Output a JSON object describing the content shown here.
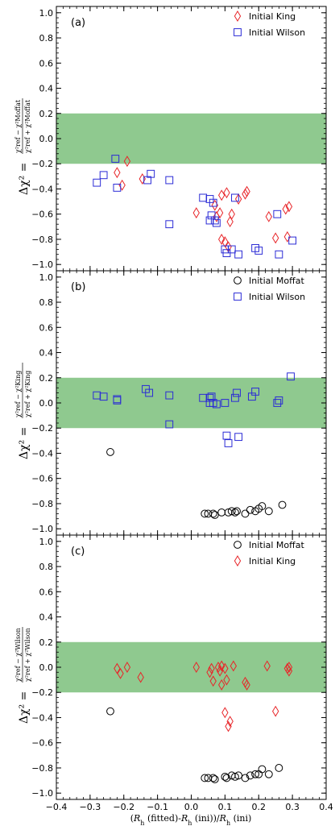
{
  "colors": {
    "band": "#8fc98f",
    "king": "#e8262a",
    "wilson": "#2b2bd6",
    "moffat": "#000000"
  },
  "xaxis": {
    "label": "(R_h (fitted)-R_h (ini))/R_h (ini)",
    "label_parts": [
      "(",
      "R",
      "h",
      " (fitted)-",
      "R",
      "h",
      " (ini))/",
      "R",
      "h",
      " (ini)"
    ],
    "ticks": [
      "−0.4",
      "−0.3",
      "−0.2",
      "−0.1",
      "0.0",
      "0.1",
      "0.2",
      "0.3",
      "0.4"
    ]
  },
  "yaxis_ticks": [
    "1.0",
    "0.8",
    "0.6",
    "0.4",
    "0.2",
    "0.0",
    "−0.2",
    "−0.4",
    "−0.6",
    "−0.8",
    "−1.0"
  ],
  "chart_data": [
    {
      "type": "scatter",
      "panel": "(a)",
      "ylabel": {
        "prefix": "Δχ² =",
        "numerator": "χ²ref − χ²Moffat",
        "denominator": "χ²ref + χ²Moffat",
        "model": "Moffat"
      },
      "xlim": [
        -0.4,
        0.4
      ],
      "ylim": [
        -1.05,
        1.05
      ],
      "band": [
        -0.2,
        0.2
      ],
      "legend_position": "top-right",
      "series": [
        {
          "name": "Initial King",
          "marker": "diamond",
          "color": "#e8262a",
          "points": [
            [
              -0.22,
              -0.27
            ],
            [
              -0.205,
              -0.37
            ],
            [
              -0.19,
              -0.18
            ],
            [
              -0.145,
              -0.32
            ],
            [
              0.015,
              -0.59
            ],
            [
              0.07,
              -0.53
            ],
            [
              0.075,
              -0.62
            ],
            [
              0.085,
              -0.59
            ],
            [
              0.09,
              -0.45
            ],
            [
              0.09,
              -0.8
            ],
            [
              0.1,
              -0.82
            ],
            [
              0.105,
              -0.43
            ],
            [
              0.11,
              -0.86
            ],
            [
              0.115,
              -0.66
            ],
            [
              0.12,
              -0.6
            ],
            [
              0.14,
              -0.48
            ],
            [
              0.16,
              -0.44
            ],
            [
              0.165,
              -0.42
            ],
            [
              0.23,
              -0.62
            ],
            [
              0.25,
              -0.79
            ],
            [
              0.28,
              -0.56
            ],
            [
              0.29,
              -0.54
            ],
            [
              0.285,
              -0.78
            ]
          ]
        },
        {
          "name": "Initial Wilson",
          "marker": "square",
          "color": "#2b2bd6",
          "points": [
            [
              -0.28,
              -0.35
            ],
            [
              -0.26,
              -0.29
            ],
            [
              -0.225,
              -0.16
            ],
            [
              -0.22,
              -0.39
            ],
            [
              -0.13,
              -0.33
            ],
            [
              -0.12,
              -0.28
            ],
            [
              -0.065,
              -0.33
            ],
            [
              -0.065,
              -0.68
            ],
            [
              0.035,
              -0.47
            ],
            [
              0.055,
              -0.48
            ],
            [
              0.055,
              -0.65
            ],
            [
              0.06,
              -0.61
            ],
            [
              0.065,
              -0.51
            ],
            [
              0.07,
              -0.65
            ],
            [
              0.075,
              -0.67
            ],
            [
              0.1,
              -0.88
            ],
            [
              0.105,
              -0.91
            ],
            [
              0.12,
              -0.88
            ],
            [
              0.13,
              -0.47
            ],
            [
              0.14,
              -0.92
            ],
            [
              0.19,
              -0.87
            ],
            [
              0.2,
              -0.89
            ],
            [
              0.255,
              -0.6
            ],
            [
              0.26,
              -0.92
            ],
            [
              0.3,
              -0.81
            ]
          ]
        }
      ]
    },
    {
      "type": "scatter",
      "panel": "(b)",
      "ylabel": {
        "prefix": "Δχ² =",
        "numerator": "χ²ref − χ²King",
        "denominator": "χ²ref + χ²King",
        "model": "King"
      },
      "xlim": [
        -0.4,
        0.4
      ],
      "ylim": [
        -1.05,
        1.05
      ],
      "band": [
        -0.2,
        0.2
      ],
      "legend_position": "top-right",
      "series": [
        {
          "name": "Initial Moffat",
          "marker": "circle",
          "color": "#000000",
          "points": [
            [
              -0.24,
              -0.39
            ],
            [
              0.04,
              -0.88
            ],
            [
              0.05,
              -0.88
            ],
            [
              0.065,
              -0.88
            ],
            [
              0.07,
              -0.89
            ],
            [
              0.09,
              -0.87
            ],
            [
              0.11,
              -0.87
            ],
            [
              0.12,
              -0.86
            ],
            [
              0.13,
              -0.87
            ],
            [
              0.135,
              -0.86
            ],
            [
              0.16,
              -0.88
            ],
            [
              0.175,
              -0.85
            ],
            [
              0.19,
              -0.86
            ],
            [
              0.2,
              -0.84
            ],
            [
              0.21,
              -0.82
            ],
            [
              0.23,
              -0.86
            ],
            [
              0.27,
              -0.81
            ]
          ]
        },
        {
          "name": "Initial Wilson",
          "marker": "square",
          "color": "#2b2bd6",
          "points": [
            [
              -0.28,
              0.06
            ],
            [
              -0.26,
              0.05
            ],
            [
              -0.22,
              0.02
            ],
            [
              -0.22,
              0.03
            ],
            [
              -0.135,
              0.11
            ],
            [
              -0.125,
              0.08
            ],
            [
              -0.065,
              0.06
            ],
            [
              -0.065,
              -0.17
            ],
            [
              0.035,
              0.04
            ],
            [
              0.055,
              0.04
            ],
            [
              0.06,
              0.05
            ],
            [
              0.055,
              0.0
            ],
            [
              0.065,
              0.0
            ],
            [
              0.075,
              -0.01
            ],
            [
              0.1,
              0.0
            ],
            [
              0.105,
              -0.26
            ],
            [
              0.11,
              -0.32
            ],
            [
              0.13,
              0.04
            ],
            [
              0.135,
              0.08
            ],
            [
              0.14,
              -0.27
            ],
            [
              0.18,
              0.05
            ],
            [
              0.19,
              0.09
            ],
            [
              0.255,
              0.0
            ],
            [
              0.26,
              0.02
            ],
            [
              0.295,
              0.21
            ]
          ]
        }
      ]
    },
    {
      "type": "scatter",
      "panel": "(c)",
      "ylabel": {
        "prefix": "Δχ² =",
        "numerator": "χ²ref − χ²Wilson",
        "denominator": "χ²ref + χ²Wilson",
        "model": "Wilson"
      },
      "xlim": [
        -0.4,
        0.4
      ],
      "ylim": [
        -1.05,
        1.05
      ],
      "band": [
        -0.2,
        0.2
      ],
      "legend_position": "top-right",
      "series": [
        {
          "name": "Initial Moffat",
          "marker": "circle",
          "color": "#000000",
          "points": [
            [
              -0.24,
              -0.35
            ],
            [
              0.04,
              -0.88
            ],
            [
              0.05,
              -0.88
            ],
            [
              0.065,
              -0.88
            ],
            [
              0.07,
              -0.89
            ],
            [
              0.1,
              -0.87
            ],
            [
              0.105,
              -0.88
            ],
            [
              0.12,
              -0.86
            ],
            [
              0.13,
              -0.87
            ],
            [
              0.14,
              -0.86
            ],
            [
              0.16,
              -0.88
            ],
            [
              0.175,
              -0.86
            ],
            [
              0.19,
              -0.85
            ],
            [
              0.2,
              -0.85
            ],
            [
              0.21,
              -0.81
            ],
            [
              0.23,
              -0.85
            ],
            [
              0.26,
              -0.8
            ]
          ]
        },
        {
          "name": "Initial King",
          "marker": "diamond",
          "color": "#e8262a",
          "points": [
            [
              -0.22,
              -0.01
            ],
            [
              -0.21,
              -0.05
            ],
            [
              -0.19,
              0.0
            ],
            [
              -0.15,
              -0.08
            ],
            [
              0.015,
              0.0
            ],
            [
              0.055,
              -0.04
            ],
            [
              0.06,
              -0.01
            ],
            [
              0.065,
              -0.11
            ],
            [
              0.08,
              0.0
            ],
            [
              0.085,
              -0.03
            ],
            [
              0.09,
              0.01
            ],
            [
              0.09,
              -0.14
            ],
            [
              0.1,
              -0.01
            ],
            [
              0.1,
              -0.36
            ],
            [
              0.105,
              -0.1
            ],
            [
              0.11,
              -0.47
            ],
            [
              0.115,
              -0.43
            ],
            [
              0.125,
              0.01
            ],
            [
              0.16,
              -0.12
            ],
            [
              0.165,
              -0.14
            ],
            [
              0.225,
              0.01
            ],
            [
              0.25,
              -0.35
            ],
            [
              0.285,
              -0.01
            ],
            [
              0.29,
              -0.03
            ],
            [
              0.29,
              0.0
            ]
          ]
        }
      ]
    }
  ]
}
